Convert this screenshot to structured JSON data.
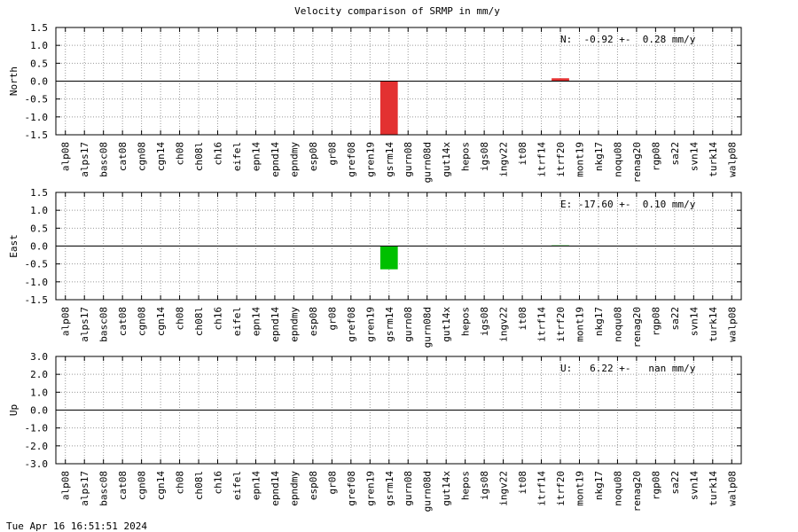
{
  "title": "Velocity comparison of SRMP in mm/y",
  "footer": "Tue Apr 16 16:51:51 2024",
  "chart_data": [
    {
      "type": "bar",
      "ylabel": "North",
      "annotation": "N:  -0.92 +-  0.28 mm/y",
      "color": "#e33131",
      "categories": [
        "alp08",
        "alps17",
        "basc08",
        "cat08",
        "cgn08",
        "cgn14",
        "ch08",
        "ch08l",
        "ch16",
        "eifel",
        "epn14",
        "epnd14",
        "epndmy",
        "esp08",
        "gr08",
        "gref08",
        "gren19",
        "gsrm14",
        "gurn08",
        "gurn08d",
        "gut14x",
        "hepos",
        "igs08",
        "ingv22",
        "it08",
        "itrf14",
        "itrf20",
        "mont19",
        "nkg17",
        "noqu08",
        "renag20",
        "rgp08",
        "sa22",
        "svn14",
        "turk14",
        "walp08"
      ],
      "values": [
        0,
        0,
        0,
        0,
        0,
        0,
        0,
        0,
        0,
        0,
        0,
        0,
        0,
        0,
        0,
        0,
        0,
        -1.6,
        0,
        0,
        0,
        0,
        0,
        0,
        0,
        0,
        0.08,
        0,
        0,
        0,
        0,
        0,
        0,
        0,
        0,
        0
      ],
      "ylim": [
        -1.5,
        1.5
      ],
      "yticks": [
        -1.5,
        {
          "value": -1.0,
          "label": "-1.0"
        },
        -0.5,
        {
          "value": 0,
          "label": "0.0"
        },
        0.5,
        {
          "value": 1.0,
          "label": "1.0"
        },
        1.5
      ],
      "grid": true
    },
    {
      "type": "bar",
      "ylabel": "East",
      "annotation": "E: -17.60 +-  0.10 mm/y",
      "color": "#00c000",
      "categories": [
        "alp08",
        "alps17",
        "basc08",
        "cat08",
        "cgn08",
        "cgn14",
        "ch08",
        "ch08l",
        "ch16",
        "eifel",
        "epn14",
        "epnd14",
        "epndmy",
        "esp08",
        "gr08",
        "gref08",
        "gren19",
        "gsrm14",
        "gurn08",
        "gurn08d",
        "gut14x",
        "hepos",
        "igs08",
        "ingv22",
        "it08",
        "itrf14",
        "itrf20",
        "mont19",
        "nkg17",
        "noqu08",
        "renag20",
        "rgp08",
        "sa22",
        "svn14",
        "turk14",
        "walp08"
      ],
      "values": [
        0,
        0,
        0,
        0,
        0,
        0,
        0,
        0,
        0,
        0,
        0,
        0,
        0,
        0,
        0,
        0,
        0,
        -0.65,
        0,
        0,
        0,
        0,
        0,
        0,
        0,
        0,
        0.02,
        0,
        0,
        0,
        0,
        0,
        0,
        0,
        0,
        0
      ],
      "ylim": [
        -1.5,
        1.5
      ],
      "yticks": [
        -1.5,
        {
          "value": -1.0,
          "label": "-1.0"
        },
        -0.5,
        {
          "value": 0,
          "label": "0.0"
        },
        0.5,
        {
          "value": 1.0,
          "label": "1.0"
        },
        1.5
      ],
      "grid": true
    },
    {
      "type": "bar",
      "ylabel": "Up",
      "annotation": "U:   6.22 +-   nan mm/y",
      "color": "#3050e0",
      "categories": [
        "alp08",
        "alps17",
        "basc08",
        "cat08",
        "cgn08",
        "cgn14",
        "ch08",
        "ch08l",
        "ch16",
        "eifel",
        "epn14",
        "epnd14",
        "epndmy",
        "esp08",
        "gr08",
        "gref08",
        "gren19",
        "gsrm14",
        "gurn08",
        "gurn08d",
        "gut14x",
        "hepos",
        "igs08",
        "ingv22",
        "it08",
        "itrf14",
        "itrf20",
        "mont19",
        "nkg17",
        "noqu08",
        "renag20",
        "rgp08",
        "sa22",
        "svn14",
        "turk14",
        "walp08"
      ],
      "values": [
        0,
        0,
        0,
        0,
        0,
        0,
        0,
        0,
        0,
        0,
        0,
        0,
        0,
        0,
        0,
        0,
        0,
        0,
        0,
        0,
        0,
        0,
        0,
        0,
        0,
        0,
        0,
        0,
        0,
        0,
        0,
        0,
        0,
        0,
        0,
        0
      ],
      "ylim": [
        -3,
        3
      ],
      "yticks": [
        {
          "value": -3,
          "label": "-3.0"
        },
        {
          "value": -2,
          "label": "-2.0"
        },
        {
          "value": -1,
          "label": "-1.0"
        },
        {
          "value": 0,
          "label": "0.0"
        },
        {
          "value": 1,
          "label": "1.0"
        },
        {
          "value": 2,
          "label": "2.0"
        },
        {
          "value": 3,
          "label": "3.0"
        }
      ],
      "grid": true
    }
  ]
}
